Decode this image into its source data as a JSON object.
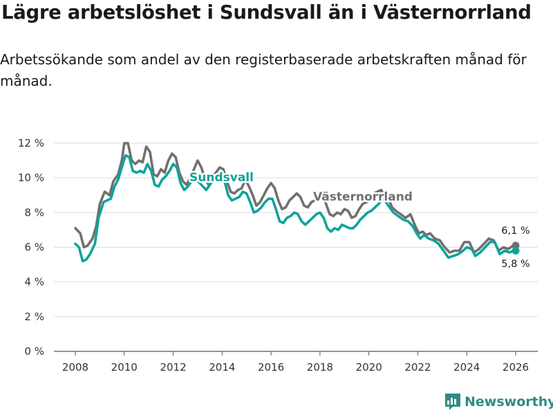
{
  "title": "Lägre arbetslöshet i Sundsvall än i Västernorrland",
  "subtitle": "Arbetssökande som andel av den registerbaserade arbetskraften månad för månad.",
  "brand": {
    "name": "Newsworthy",
    "icon": "bar-chart-logo-icon"
  },
  "colors": {
    "sundsvall": "#0fa39a",
    "vasternorrland": "#707070",
    "grid": "#dddddd"
  },
  "chart_data": {
    "type": "line",
    "title": "Lägre arbetslöshet i Sundsvall än i Västernorrland",
    "xlabel": "",
    "ylabel": "",
    "xlim": [
      2007.5,
      2026.8
    ],
    "ylim": [
      0,
      12
    ],
    "y_ticks": [
      0,
      2,
      4,
      6,
      8,
      10,
      12
    ],
    "y_tick_labels": [
      "0 %",
      "2 %",
      "4 %",
      "6 %",
      "8 %",
      "10 %",
      "12 %"
    ],
    "x_ticks": [
      2008,
      2010,
      2012,
      2014,
      2016,
      2018,
      2020,
      2022,
      2024,
      2026
    ],
    "x_tick_labels": [
      "2008",
      "2010",
      "2012",
      "2014",
      "2016",
      "2018",
      "2020",
      "2022",
      "2024",
      "2026"
    ],
    "series": [
      {
        "name": "Västernorrland",
        "label": "Västernorrland",
        "end_label": "6,1 %",
        "points": [
          [
            2008.0,
            7.1
          ],
          [
            2008.2,
            6.8
          ],
          [
            2008.35,
            6.0
          ],
          [
            2008.5,
            6.1
          ],
          [
            2008.7,
            6.5
          ],
          [
            2008.85,
            7.2
          ],
          [
            2009.0,
            8.5
          ],
          [
            2009.2,
            9.2
          ],
          [
            2009.4,
            9.0
          ],
          [
            2009.55,
            9.8
          ],
          [
            2009.75,
            10.2
          ],
          [
            2009.9,
            11.0
          ],
          [
            2010.0,
            12.0
          ],
          [
            2010.15,
            12.0
          ],
          [
            2010.3,
            11.0
          ],
          [
            2010.45,
            10.8
          ],
          [
            2010.6,
            11.0
          ],
          [
            2010.75,
            10.9
          ],
          [
            2010.9,
            11.8
          ],
          [
            2011.05,
            11.5
          ],
          [
            2011.2,
            10.2
          ],
          [
            2011.35,
            10.1
          ],
          [
            2011.5,
            10.5
          ],
          [
            2011.65,
            10.3
          ],
          [
            2011.8,
            11.0
          ],
          [
            2011.95,
            11.4
          ],
          [
            2012.1,
            11.2
          ],
          [
            2012.25,
            10.3
          ],
          [
            2012.4,
            9.8
          ],
          [
            2012.55,
            9.6
          ],
          [
            2012.7,
            10.0
          ],
          [
            2012.85,
            10.5
          ],
          [
            2013.0,
            11.0
          ],
          [
            2013.15,
            10.6
          ],
          [
            2013.3,
            9.9
          ],
          [
            2013.45,
            9.6
          ],
          [
            2013.6,
            10.1
          ],
          [
            2013.75,
            10.3
          ],
          [
            2013.9,
            10.6
          ],
          [
            2014.05,
            10.5
          ],
          [
            2014.2,
            9.8
          ],
          [
            2014.35,
            9.2
          ],
          [
            2014.5,
            9.1
          ],
          [
            2014.65,
            9.3
          ],
          [
            2014.8,
            9.4
          ],
          [
            2014.95,
            9.9
          ],
          [
            2015.1,
            9.5
          ],
          [
            2015.25,
            9.0
          ],
          [
            2015.4,
            8.4
          ],
          [
            2015.55,
            8.6
          ],
          [
            2015.7,
            9.0
          ],
          [
            2015.85,
            9.4
          ],
          [
            2016.0,
            9.7
          ],
          [
            2016.15,
            9.4
          ],
          [
            2016.3,
            8.7
          ],
          [
            2016.45,
            8.2
          ],
          [
            2016.6,
            8.3
          ],
          [
            2016.75,
            8.7
          ],
          [
            2016.9,
            8.9
          ],
          [
            2017.05,
            9.1
          ],
          [
            2017.2,
            8.9
          ],
          [
            2017.35,
            8.4
          ],
          [
            2017.5,
            8.3
          ],
          [
            2017.65,
            8.6
          ],
          [
            2017.8,
            8.7
          ],
          [
            2017.95,
            8.9
          ],
          [
            2018.1,
            9.0
          ],
          [
            2018.25,
            8.5
          ],
          [
            2018.4,
            7.9
          ],
          [
            2018.55,
            7.8
          ],
          [
            2018.7,
            8.0
          ],
          [
            2018.85,
            7.9
          ],
          [
            2019.0,
            8.2
          ],
          [
            2019.15,
            8.1
          ],
          [
            2019.3,
            7.7
          ],
          [
            2019.45,
            7.8
          ],
          [
            2019.6,
            8.2
          ],
          [
            2019.75,
            8.5
          ],
          [
            2019.9,
            8.6
          ],
          [
            2020.05,
            8.7
          ],
          [
            2020.2,
            9.1
          ],
          [
            2020.35,
            9.2
          ],
          [
            2020.5,
            9.3
          ],
          [
            2020.65,
            9.0
          ],
          [
            2020.8,
            8.8
          ],
          [
            2020.95,
            8.3
          ],
          [
            2021.1,
            8.1
          ],
          [
            2021.3,
            7.9
          ],
          [
            2021.5,
            7.7
          ],
          [
            2021.7,
            7.9
          ],
          [
            2021.9,
            7.2
          ],
          [
            2022.05,
            6.8
          ],
          [
            2022.2,
            6.9
          ],
          [
            2022.35,
            6.7
          ],
          [
            2022.5,
            6.8
          ],
          [
            2022.7,
            6.5
          ],
          [
            2022.9,
            6.4
          ],
          [
            2023.1,
            6.0
          ],
          [
            2023.3,
            5.7
          ],
          [
            2023.5,
            5.8
          ],
          [
            2023.7,
            5.8
          ],
          [
            2023.9,
            6.3
          ],
          [
            2024.1,
            6.3
          ],
          [
            2024.3,
            5.7
          ],
          [
            2024.5,
            5.9
          ],
          [
            2024.7,
            6.2
          ],
          [
            2024.9,
            6.5
          ],
          [
            2025.1,
            6.4
          ],
          [
            2025.3,
            5.8
          ],
          [
            2025.5,
            6.0
          ],
          [
            2025.7,
            5.9
          ],
          [
            2025.9,
            6.1
          ],
          [
            2026.0,
            6.1
          ]
        ]
      },
      {
        "name": "Sundsvall",
        "label": "Sundsvall",
        "end_label": "5,8 %",
        "points": [
          [
            2008.0,
            6.2
          ],
          [
            2008.15,
            6.0
          ],
          [
            2008.3,
            5.2
          ],
          [
            2008.45,
            5.3
          ],
          [
            2008.6,
            5.6
          ],
          [
            2008.8,
            6.2
          ],
          [
            2008.95,
            7.7
          ],
          [
            2009.15,
            8.6
          ],
          [
            2009.3,
            8.7
          ],
          [
            2009.45,
            8.8
          ],
          [
            2009.6,
            9.5
          ],
          [
            2009.75,
            9.9
          ],
          [
            2009.9,
            10.6
          ],
          [
            2010.05,
            11.3
          ],
          [
            2010.2,
            11.2
          ],
          [
            2010.35,
            10.4
          ],
          [
            2010.5,
            10.3
          ],
          [
            2010.65,
            10.4
          ],
          [
            2010.8,
            10.3
          ],
          [
            2010.95,
            10.8
          ],
          [
            2011.1,
            10.4
          ],
          [
            2011.25,
            9.6
          ],
          [
            2011.4,
            9.5
          ],
          [
            2011.55,
            9.9
          ],
          [
            2011.7,
            10.1
          ],
          [
            2011.85,
            10.4
          ],
          [
            2012.0,
            10.8
          ],
          [
            2012.15,
            10.6
          ],
          [
            2012.3,
            9.7
          ],
          [
            2012.45,
            9.3
          ],
          [
            2012.6,
            9.5
          ],
          [
            2012.75,
            9.8
          ],
          [
            2012.95,
            9.9
          ],
          [
            2013.15,
            9.6
          ],
          [
            2013.35,
            9.3
          ],
          [
            2013.5,
            9.6
          ],
          [
            2013.65,
            9.9
          ],
          [
            2013.8,
            10.1
          ],
          [
            2013.95,
            10.3
          ],
          [
            2014.1,
            9.8
          ],
          [
            2014.25,
            9.0
          ],
          [
            2014.4,
            8.7
          ],
          [
            2014.55,
            8.8
          ],
          [
            2014.7,
            8.9
          ],
          [
            2014.85,
            9.2
          ],
          [
            2015.0,
            9.1
          ],
          [
            2015.15,
            8.6
          ],
          [
            2015.3,
            8.0
          ],
          [
            2015.45,
            8.1
          ],
          [
            2015.6,
            8.3
          ],
          [
            2015.75,
            8.6
          ],
          [
            2015.9,
            8.8
          ],
          [
            2016.05,
            8.8
          ],
          [
            2016.2,
            8.2
          ],
          [
            2016.35,
            7.5
          ],
          [
            2016.5,
            7.4
          ],
          [
            2016.65,
            7.7
          ],
          [
            2016.8,
            7.8
          ],
          [
            2016.95,
            8.0
          ],
          [
            2017.1,
            7.9
          ],
          [
            2017.25,
            7.5
          ],
          [
            2017.4,
            7.3
          ],
          [
            2017.55,
            7.5
          ],
          [
            2017.7,
            7.7
          ],
          [
            2017.85,
            7.9
          ],
          [
            2018.0,
            8.0
          ],
          [
            2018.15,
            7.7
          ],
          [
            2018.3,
            7.1
          ],
          [
            2018.45,
            6.9
          ],
          [
            2018.6,
            7.1
          ],
          [
            2018.75,
            7.0
          ],
          [
            2018.9,
            7.3
          ],
          [
            2019.05,
            7.2
          ],
          [
            2019.2,
            7.1
          ],
          [
            2019.35,
            7.1
          ],
          [
            2019.5,
            7.3
          ],
          [
            2019.65,
            7.6
          ],
          [
            2019.8,
            7.8
          ],
          [
            2019.95,
            8.0
          ],
          [
            2020.1,
            8.1
          ],
          [
            2020.25,
            8.3
          ],
          [
            2020.4,
            8.5
          ],
          [
            2020.55,
            8.8
          ],
          [
            2020.7,
            8.6
          ],
          [
            2020.85,
            8.3
          ],
          [
            2021.0,
            8.0
          ],
          [
            2021.2,
            7.8
          ],
          [
            2021.4,
            7.6
          ],
          [
            2021.6,
            7.5
          ],
          [
            2021.8,
            7.2
          ],
          [
            2021.95,
            6.8
          ],
          [
            2022.1,
            6.5
          ],
          [
            2022.25,
            6.7
          ],
          [
            2022.45,
            6.5
          ],
          [
            2022.65,
            6.4
          ],
          [
            2022.85,
            6.2
          ],
          [
            2023.05,
            5.8
          ],
          [
            2023.25,
            5.4
          ],
          [
            2023.45,
            5.5
          ],
          [
            2023.65,
            5.6
          ],
          [
            2023.85,
            5.8
          ],
          [
            2024.0,
            6.0
          ],
          [
            2024.2,
            5.9
          ],
          [
            2024.35,
            5.5
          ],
          [
            2024.55,
            5.7
          ],
          [
            2024.75,
            6.0
          ],
          [
            2024.95,
            6.3
          ],
          [
            2025.15,
            6.3
          ],
          [
            2025.35,
            5.6
          ],
          [
            2025.55,
            5.8
          ],
          [
            2025.75,
            5.7
          ],
          [
            2025.9,
            5.8
          ],
          [
            2026.0,
            5.8
          ]
        ]
      }
    ]
  }
}
